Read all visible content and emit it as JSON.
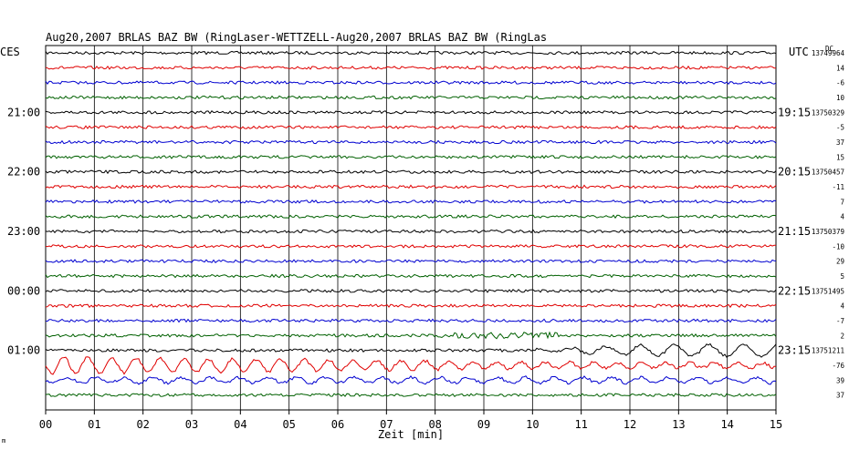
{
  "chart_data": {
    "type": "line",
    "title": "Aug20,2007   BRLAS BAZ BW (RingLaser-WETTZELL-Aug20,2007   BRLAS BAZ BW (RingLas",
    "left_axis_title": "CES",
    "right_axis_title": "UTC",
    "dc_label": "DC",
    "xlabel": "Zeit [min]",
    "xlim": [
      0,
      15
    ],
    "x_ticks": [
      "00",
      "01",
      "02",
      "03",
      "04",
      "05",
      "06",
      "07",
      "08",
      "09",
      "10",
      "11",
      "12",
      "13",
      "14",
      "15"
    ],
    "left_hour_labels": [
      "21:00",
      "22:00",
      "23:00",
      "00:00",
      "01:00"
    ],
    "right_hour_labels": [
      "19:15",
      "20:15",
      "21:15",
      "22:15",
      "23:15"
    ],
    "trace_colors": [
      "#000000",
      "#e00000",
      "#0000d0",
      "#006000"
    ],
    "rows": [
      {
        "dc": "13749964"
      },
      {
        "dc": "14"
      },
      {
        "dc": "-6"
      },
      {
        "dc": "10"
      },
      {
        "dc": "13750329"
      },
      {
        "dc": "-5"
      },
      {
        "dc": "37"
      },
      {
        "dc": "15"
      },
      {
        "dc": "13750457"
      },
      {
        "dc": "-11"
      },
      {
        "dc": "7"
      },
      {
        "dc": "4"
      },
      {
        "dc": "13750379"
      },
      {
        "dc": "-10"
      },
      {
        "dc": "29"
      },
      {
        "dc": "5"
      },
      {
        "dc": "13751495"
      },
      {
        "dc": "4"
      },
      {
        "dc": "-7"
      },
      {
        "dc": "2"
      },
      {
        "dc": "13751211"
      },
      {
        "dc": "-76"
      },
      {
        "dc": "39"
      },
      {
        "dc": "37"
      }
    ],
    "grid": true,
    "legend": "none"
  },
  "marker": "m"
}
